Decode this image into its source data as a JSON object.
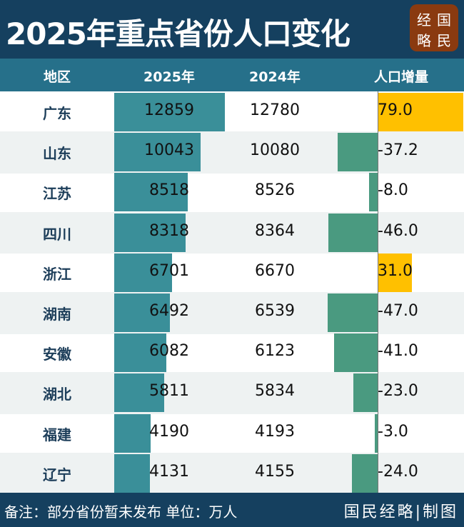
{
  "title": "2025年重点省份人口变化",
  "logo": [
    "经",
    "国",
    "略",
    "民"
  ],
  "chart_data": {
    "type": "table",
    "columns": [
      "地区",
      "2025年",
      "2024年",
      "人口增量"
    ],
    "rows": [
      {
        "region": "广东",
        "y2025": 12859,
        "y2024": 12780,
        "delta": "79.0"
      },
      {
        "region": "山东",
        "y2025": 10043,
        "y2024": 10080,
        "delta": "-37.2"
      },
      {
        "region": "江苏",
        "y2025": 8518,
        "y2024": 8526,
        "delta": "-8.0"
      },
      {
        "region": "四川",
        "y2025": 8318,
        "y2024": 8364,
        "delta": "-46.0"
      },
      {
        "region": "浙江",
        "y2025": 6701,
        "y2024": 6670,
        "delta": "31.0"
      },
      {
        "region": "湖南",
        "y2025": 6492,
        "y2024": 6539,
        "delta": "-47.0"
      },
      {
        "region": "安徽",
        "y2025": 6082,
        "y2024": 6123,
        "delta": "-41.0"
      },
      {
        "region": "湖北",
        "y2025": 5811,
        "y2024": 5834,
        "delta": "-23.0"
      },
      {
        "region": "福建",
        "y2025": 4190,
        "y2024": 4193,
        "delta": "-3.0"
      },
      {
        "region": "辽宁",
        "y2025": 4131,
        "y2024": 4155,
        "delta": "-24.0"
      }
    ],
    "colors": {
      "bar2025": "#3a8f99",
      "positive": "#ffc000",
      "negative": "#4a9a80"
    }
  },
  "footer": {
    "note": "备注：部分省份暂未发布  单位：万人",
    "credit": "国民经略|制图"
  }
}
